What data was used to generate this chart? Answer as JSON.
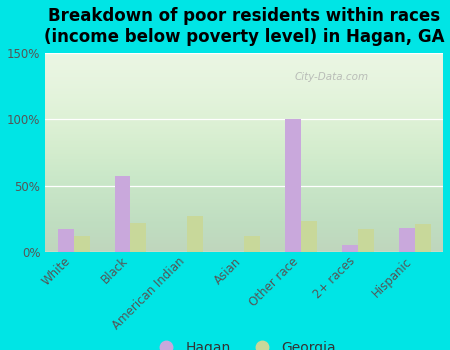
{
  "title": "Breakdown of poor residents within races\n(income below poverty level) in Hagan, GA",
  "categories": [
    "White",
    "Black",
    "American Indian",
    "Asian",
    "Other race",
    "2+ races",
    "Hispanic"
  ],
  "hagan_values": [
    17,
    57,
    0,
    0,
    100,
    5,
    18
  ],
  "georgia_values": [
    12,
    22,
    27,
    12,
    23,
    17,
    21
  ],
  "hagan_color": "#c9a8dc",
  "georgia_color": "#c8d89a",
  "background_color": "#00e5e5",
  "ylabel_ticks": [
    "0%",
    "50%",
    "100%",
    "150%"
  ],
  "ytick_vals": [
    0,
    50,
    100,
    150
  ],
  "ylim": [
    0,
    150
  ],
  "watermark": "City-Data.com",
  "legend_hagan": "Hagan",
  "legend_georgia": "Georgia",
  "title_fontsize": 12,
  "tick_fontsize": 8.5,
  "legend_fontsize": 10
}
